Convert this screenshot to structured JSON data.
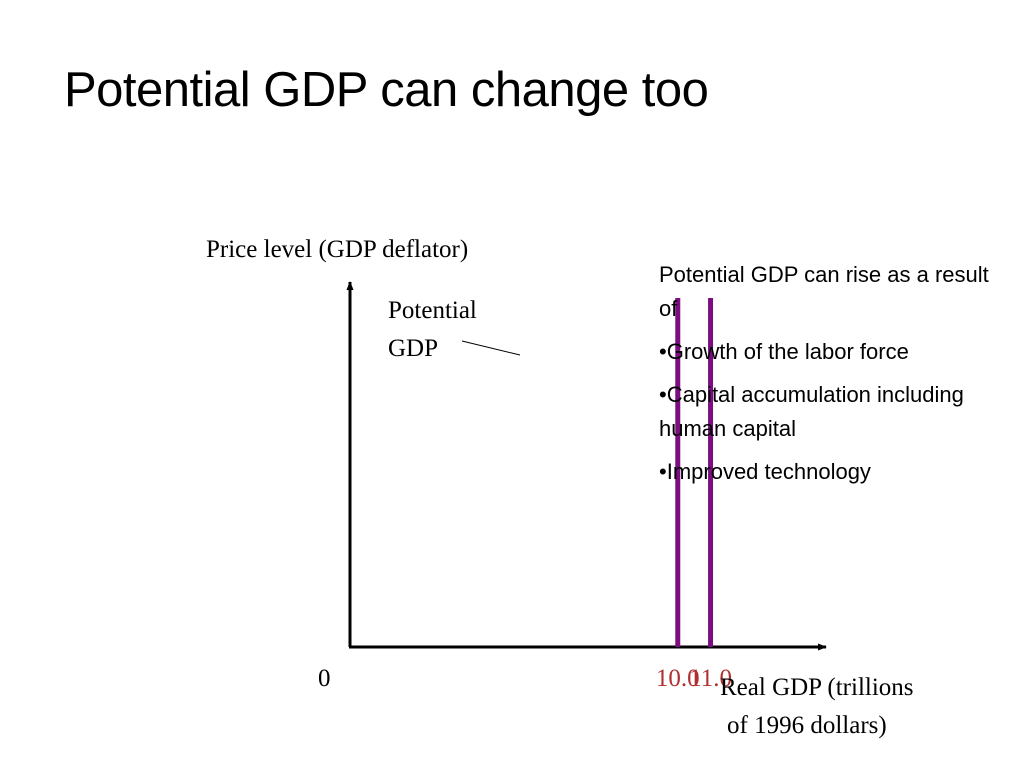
{
  "slide": {
    "title": "Potential GDP can change too"
  },
  "chart_data": {
    "type": "line",
    "title": "",
    "ylabel": "Price level (GDP deflator)",
    "xlabel_lines": [
      "Real GDP (trillions",
      "of 1996 dollars)"
    ],
    "origin_label": "0",
    "xlim": [
      0,
      14.4
    ],
    "grid": false,
    "legend": "none",
    "series": [
      {
        "x": 10.0,
        "tick_label": "10.0",
        "color": "#7b0d80"
      },
      {
        "x": 11.0,
        "tick_label": "11.0",
        "color": "#7b0d80"
      }
    ],
    "annotation": {
      "lines": [
        "Potential",
        "GDP"
      ]
    },
    "colors": {
      "axis": "#000000",
      "tick_label": "#b03030",
      "curve": "#7b0d80"
    }
  },
  "notes": {
    "intro": "Potential GDP can rise as a result of",
    "bullets": [
      "•Growth of the labor force",
      "•Capital accumulation including human capital",
      "•Improved technology"
    ]
  }
}
